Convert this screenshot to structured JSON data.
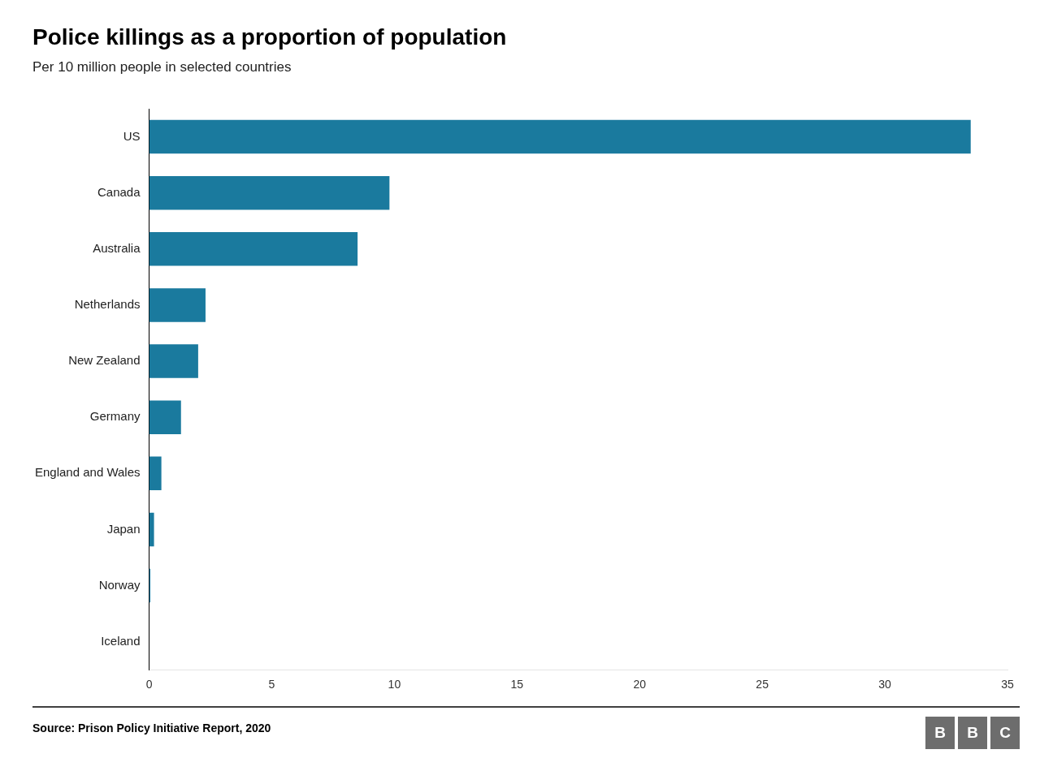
{
  "chart_data": {
    "type": "bar",
    "orientation": "horizontal",
    "title": "Police killings as a proportion of population",
    "subtitle": "Per 10 million people in selected countries",
    "annotations": [
      "Source: Prison Policy Initiative Report, 2020",
      "BBC"
    ],
    "categories": [
      "US",
      "Canada",
      "Australia",
      "Netherlands",
      "New Zealand",
      "Germany",
      "England and Wales",
      "Japan",
      "Norway",
      "Iceland"
    ],
    "values": [
      33.5,
      9.8,
      8.5,
      2.3,
      2.0,
      1.3,
      0.5,
      0.2,
      0.05,
      0.0
    ],
    "color": "#1a7a9e",
    "xlim": [
      0,
      35
    ],
    "xticks": [
      0,
      5,
      10,
      15,
      20,
      25,
      30,
      35
    ],
    "grid": false
  }
}
